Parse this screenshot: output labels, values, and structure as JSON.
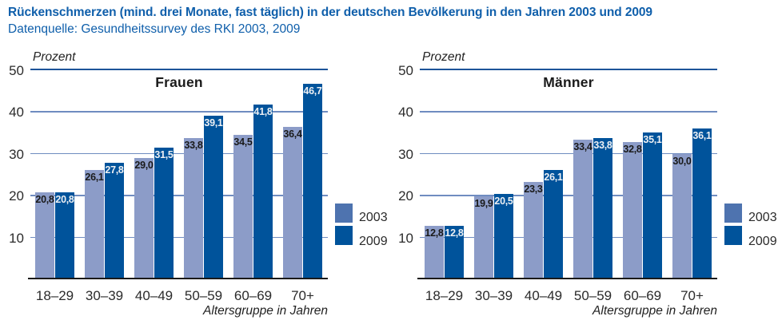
{
  "header": {
    "title": "Rückenschmerzen (mind. drei Monate, fast täglich) in der deutschen Bevölkerung in den Jahren 2003 und 2009",
    "subtitle": "Datenquelle: Gesundheitssurvey des RKI 2003, 2009"
  },
  "colors": {
    "title_blue": "#0f5fab",
    "bar_2003": "#8c9cc8",
    "bar_2009": "#00539b",
    "legend_2003": "#4e73af",
    "legend_2009": "#00539b",
    "grid": "#6f8cc0",
    "grid_top": "#1d5499",
    "axis_line": "#1a1a1a",
    "value_on_light": "#1a1a1a",
    "value_on_dark": "#eef0f4"
  },
  "chart_data": [
    {
      "type": "bar",
      "title": "Frauen",
      "unit_label": "Prozent",
      "xlabel": "Altersgruppe in Jahren",
      "categories": [
        "18–29",
        "30–39",
        "40–49",
        "50–59",
        "60–69",
        "70+"
      ],
      "series": [
        {
          "name": "2003",
          "values": [
            20.8,
            26.1,
            29.0,
            33.8,
            34.5,
            36.4
          ]
        },
        {
          "name": "2009",
          "values": [
            20.8,
            27.8,
            31.5,
            39.1,
            41.8,
            46.7
          ]
        }
      ],
      "ylim": [
        0,
        50
      ],
      "yticks": [
        10,
        20,
        30,
        40,
        50
      ],
      "grid": true,
      "legend": [
        "2003",
        "2009"
      ],
      "legend_position": "right"
    },
    {
      "type": "bar",
      "title": "Männer",
      "unit_label": "Prozent",
      "xlabel": "Altersgruppe in Jahren",
      "categories": [
        "18–29",
        "30–39",
        "40–49",
        "50–59",
        "60–69",
        "70+"
      ],
      "series": [
        {
          "name": "2003",
          "values": [
            12.8,
            19.9,
            23.3,
            33.4,
            32.8,
            30.0
          ]
        },
        {
          "name": "2009",
          "values": [
            12.8,
            20.5,
            26.1,
            33.8,
            35.1,
            36.1
          ]
        }
      ],
      "ylim": [
        0,
        50
      ],
      "yticks": [
        10,
        20,
        30,
        40,
        50
      ],
      "grid": true,
      "legend": [
        "2003",
        "2009"
      ],
      "legend_position": "right"
    }
  ]
}
